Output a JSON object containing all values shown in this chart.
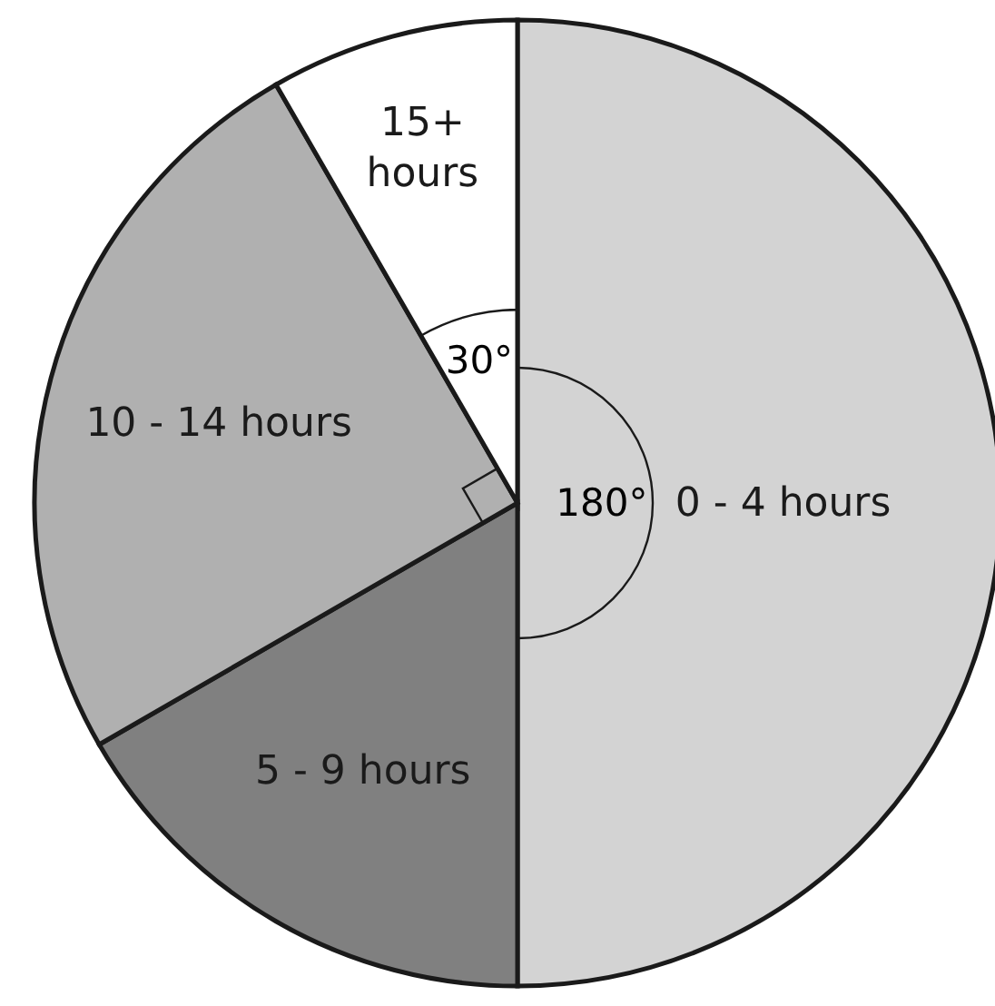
{
  "chart_data": {
    "type": "pie",
    "categories": [
      "0 - 4 hours",
      "5 - 9 hours",
      "10 - 14 hours",
      "15+ hours"
    ],
    "values": [
      180,
      60,
      90,
      30
    ],
    "colors": [
      "#d3d3d3",
      "#808080",
      "#b0b0b0",
      "#ffffff"
    ],
    "value_labels": [
      "180°",
      null,
      null,
      "30°"
    ]
  }
}
